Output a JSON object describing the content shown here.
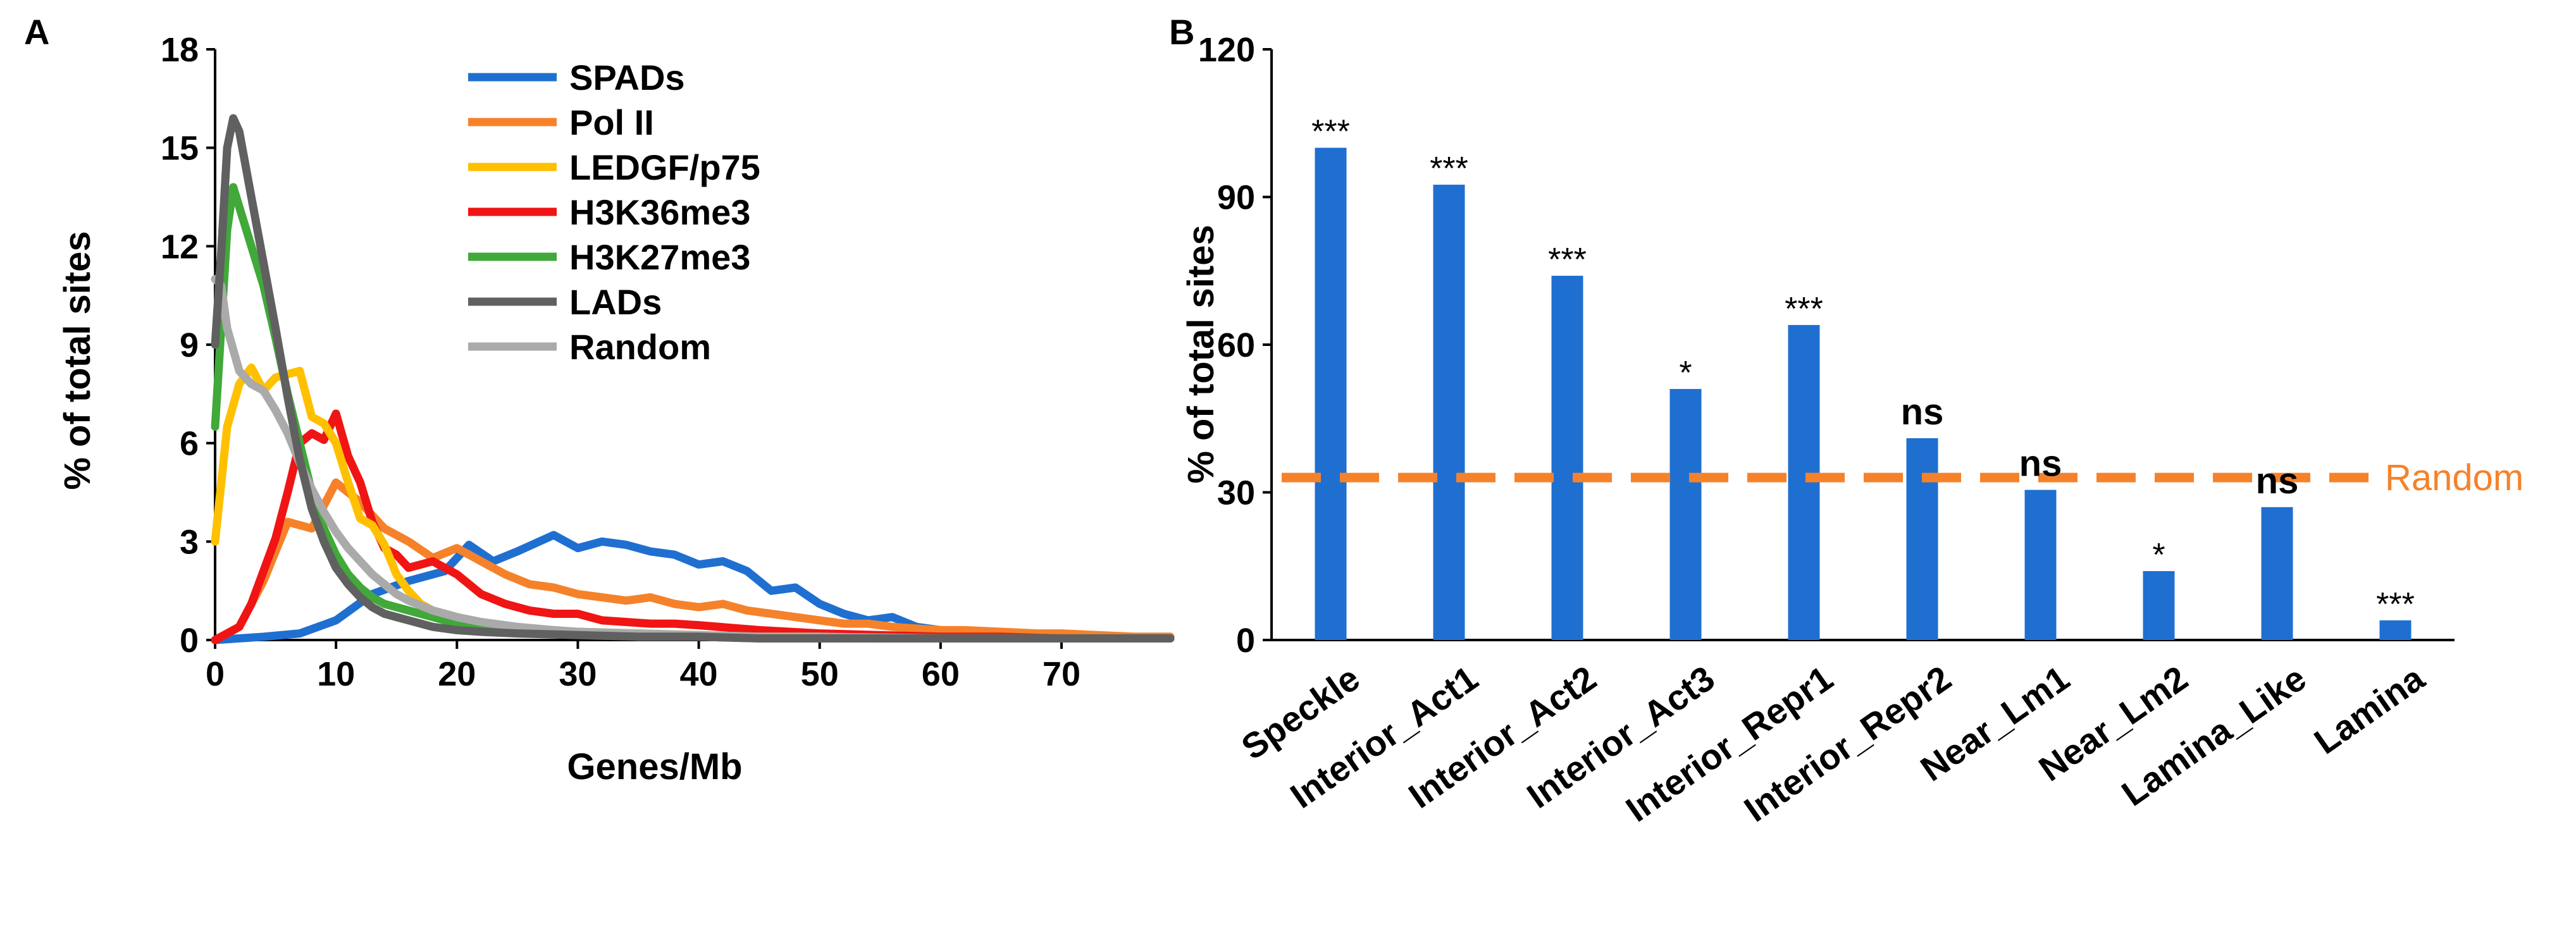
{
  "panel_labels": {
    "a": "A",
    "b": "B"
  },
  "colors": {
    "SPADs": "#1f6fd1",
    "PolII": "#f5822a",
    "LEDGF": "#ffc000",
    "H3K36me3": "#f01414",
    "H3K27me3": "#41a83a",
    "LADs": "#606060",
    "Random": "#aaaaaa",
    "bar": "#1f6fd1",
    "ref": "#f5822a"
  },
  "chart_data": [
    {
      "type": "line",
      "panel": "A",
      "title": "",
      "xlabel": "Genes/Mb",
      "ylabel": "% of total sites",
      "xlim": [
        0,
        79
      ],
      "ylim": [
        0,
        18
      ],
      "xticks": [
        0,
        10,
        20,
        30,
        40,
        50,
        60,
        70
      ],
      "yticks": [
        0,
        3,
        6,
        9,
        12,
        15,
        18
      ],
      "legend_position": "top-center",
      "series": [
        {
          "name": "SPADs",
          "color_key": "SPADs",
          "x": [
            0,
            4,
            7,
            10,
            13,
            16,
            19,
            21,
            23,
            25,
            28,
            30,
            32,
            34,
            36,
            38,
            40,
            42,
            44,
            46,
            48,
            50,
            52,
            54,
            56,
            58,
            60,
            62,
            65,
            68,
            70,
            73,
            76,
            79
          ],
          "y": [
            0,
            0.1,
            0.2,
            0.6,
            1.4,
            1.8,
            2.1,
            2.9,
            2.4,
            2.7,
            3.2,
            2.8,
            3.0,
            2.9,
            2.7,
            2.6,
            2.3,
            2.4,
            2.1,
            1.5,
            1.6,
            1.1,
            0.8,
            0.6,
            0.7,
            0.4,
            0.3,
            0.2,
            0.2,
            0.15,
            0.1,
            0.1,
            0.05,
            0.05
          ]
        },
        {
          "name": "Pol II",
          "color_key": "PolII",
          "x": [
            0,
            2,
            4,
            6,
            8,
            10,
            12,
            14,
            16,
            18,
            20,
            22,
            24,
            26,
            28,
            30,
            32,
            34,
            36,
            38,
            40,
            42,
            44,
            46,
            48,
            50,
            52,
            54,
            56,
            58,
            60,
            62,
            65,
            68,
            70,
            73,
            76,
            79
          ],
          "y": [
            0,
            0.4,
            1.8,
            3.6,
            3.4,
            4.8,
            4.2,
            3.4,
            3.0,
            2.5,
            2.8,
            2.4,
            2.0,
            1.7,
            1.6,
            1.4,
            1.3,
            1.2,
            1.3,
            1.1,
            1.0,
            1.1,
            0.9,
            0.8,
            0.7,
            0.6,
            0.5,
            0.5,
            0.4,
            0.35,
            0.3,
            0.3,
            0.25,
            0.2,
            0.2,
            0.15,
            0.1,
            0.1
          ]
        },
        {
          "name": "LEDGF/p75",
          "color_key": "LEDGF",
          "x": [
            0,
            1,
            2,
            3,
            4,
            5,
            6,
            7,
            8,
            9,
            10,
            11,
            12,
            13,
            14,
            15,
            16,
            17,
            18,
            20,
            22,
            24,
            26,
            28,
            30,
            35,
            40,
            45,
            50,
            55,
            60,
            65,
            70,
            79
          ],
          "y": [
            3.0,
            6.5,
            7.8,
            8.3,
            7.6,
            8.0,
            8.1,
            8.2,
            6.8,
            6.6,
            6.0,
            4.8,
            3.7,
            3.5,
            2.9,
            2.0,
            1.5,
            1.1,
            0.9,
            0.7,
            0.5,
            0.4,
            0.35,
            0.3,
            0.25,
            0.2,
            0.15,
            0.1,
            0.1,
            0.05,
            0.05,
            0.05,
            0.05,
            0.05
          ]
        },
        {
          "name": "H3K36me3",
          "color_key": "H3K36me3",
          "x": [
            0,
            2,
            3,
            4,
            5,
            6,
            7,
            8,
            9,
            10,
            11,
            12,
            13,
            14,
            15,
            16,
            18,
            20,
            22,
            24,
            26,
            28,
            30,
            32,
            34,
            36,
            38,
            40,
            45,
            50,
            55,
            60,
            65,
            70,
            79
          ],
          "y": [
            0,
            0.4,
            1.1,
            2.1,
            3.1,
            4.5,
            6.0,
            6.3,
            6.1,
            6.9,
            5.6,
            4.8,
            3.6,
            2.8,
            2.6,
            2.2,
            2.4,
            2.0,
            1.4,
            1.1,
            0.9,
            0.8,
            0.8,
            0.6,
            0.55,
            0.5,
            0.5,
            0.45,
            0.3,
            0.2,
            0.15,
            0.1,
            0.1,
            0.05,
            0.05
          ]
        },
        {
          "name": "H3K27me3",
          "color_key": "H3K27me3",
          "x": [
            0,
            0.5,
            1,
            1.5,
            2,
            3,
            4,
            5,
            6,
            7,
            8,
            9,
            10,
            11,
            12,
            13,
            14,
            15,
            16,
            18,
            20,
            22,
            25,
            30,
            35,
            40,
            45,
            50,
            60,
            70,
            79
          ],
          "y": [
            6.5,
            9.5,
            12.5,
            13.8,
            13.2,
            12.0,
            10.8,
            9.2,
            7.5,
            6.0,
            4.5,
            3.4,
            2.6,
            2.0,
            1.6,
            1.3,
            1.1,
            1.0,
            0.9,
            0.7,
            0.5,
            0.4,
            0.3,
            0.2,
            0.1,
            0.1,
            0.05,
            0.05,
            0.05,
            0.05,
            0.05
          ]
        },
        {
          "name": "LADs",
          "color_key": "LADs",
          "x": [
            0,
            0.5,
            1,
            1.5,
            2,
            3,
            4,
            5,
            6,
            7,
            8,
            9,
            10,
            11,
            12,
            13,
            14,
            15,
            16,
            18,
            20,
            22,
            25,
            30,
            35,
            40,
            45,
            50,
            60,
            70,
            79
          ],
          "y": [
            9.0,
            11.8,
            15.0,
            15.9,
            15.5,
            13.5,
            11.5,
            9.5,
            7.4,
            5.5,
            4.0,
            3.0,
            2.2,
            1.7,
            1.3,
            1.0,
            0.8,
            0.7,
            0.6,
            0.4,
            0.3,
            0.25,
            0.2,
            0.15,
            0.1,
            0.1,
            0.05,
            0.05,
            0.05,
            0.05,
            0.05
          ]
        },
        {
          "name": "Random",
          "color_key": "Random",
          "x": [
            0,
            0.5,
            1,
            2,
            3,
            4,
            5,
            6,
            7,
            8,
            9,
            10,
            11,
            12,
            13,
            14,
            15,
            16,
            18,
            20,
            22,
            25,
            28,
            30,
            35,
            40,
            45,
            50,
            60,
            70,
            79
          ],
          "y": [
            11.0,
            10.8,
            9.5,
            8.2,
            7.8,
            7.6,
            7.0,
            6.3,
            5.4,
            4.6,
            3.9,
            3.3,
            2.8,
            2.4,
            2.0,
            1.7,
            1.4,
            1.2,
            0.9,
            0.7,
            0.55,
            0.4,
            0.3,
            0.25,
            0.2,
            0.15,
            0.1,
            0.1,
            0.05,
            0.05,
            0.05
          ]
        }
      ]
    },
    {
      "type": "bar",
      "panel": "B",
      "title": "",
      "xlabel": "",
      "ylabel": "% of total sites",
      "ylim": [
        0,
        120
      ],
      "yticks": [
        0,
        30,
        60,
        90,
        120
      ],
      "categories": [
        "Speckle",
        "Interior_Act1",
        "Interior_Act2",
        "Interior_Act3",
        "Interior_Repr1",
        "Interior_Repr2",
        "Near_Lm1",
        "Near_Lm2",
        "Lamina_Like",
        "Lamina"
      ],
      "values": [
        100,
        92.5,
        74,
        51,
        64,
        41,
        30.5,
        14,
        27,
        4
      ],
      "significance": [
        "***",
        "***",
        "***",
        "*",
        "***",
        "ns",
        "ns",
        "*",
        "ns",
        "***"
      ],
      "reference_line": {
        "label": "Random",
        "value": 33
      }
    }
  ]
}
